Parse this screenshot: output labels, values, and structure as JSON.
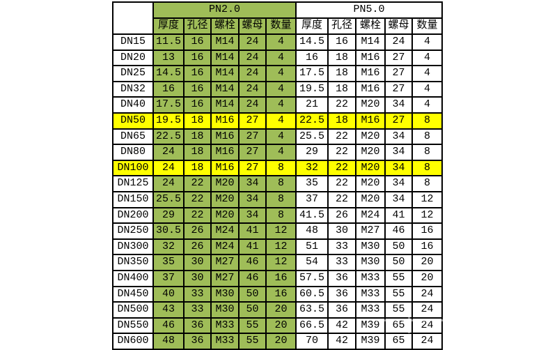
{
  "colors": {
    "green": "#9fbd58",
    "yellow": "#ffff00",
    "border": "#000000",
    "background": "#ffffff"
  },
  "table": {
    "corner_label": "",
    "groups": [
      {
        "label": "PN2.0"
      },
      {
        "label": "PN5.0"
      }
    ],
    "columns": [
      "厚度",
      "孔径",
      "螺栓",
      "螺母",
      "数量"
    ],
    "rows": [
      {
        "dn": "DN15",
        "pn2": [
          "11.5",
          "16",
          "M14",
          "24",
          "4"
        ],
        "pn5": [
          "14.5",
          "16",
          "M14",
          "24",
          "4"
        ],
        "highlight": false
      },
      {
        "dn": "DN20",
        "pn2": [
          "13",
          "16",
          "M14",
          "24",
          "4"
        ],
        "pn5": [
          "16",
          "18",
          "M16",
          "27",
          "4"
        ],
        "highlight": false
      },
      {
        "dn": "DN25",
        "pn2": [
          "14.5",
          "16",
          "M14",
          "24",
          "4"
        ],
        "pn5": [
          "17.5",
          "18",
          "M16",
          "27",
          "4"
        ],
        "highlight": false
      },
      {
        "dn": "DN32",
        "pn2": [
          "16",
          "16",
          "M14",
          "24",
          "4"
        ],
        "pn5": [
          "19.5",
          "18",
          "M16",
          "27",
          "4"
        ],
        "highlight": false
      },
      {
        "dn": "DN40",
        "pn2": [
          "17.5",
          "16",
          "M14",
          "24",
          "4"
        ],
        "pn5": [
          "21",
          "22",
          "M20",
          "34",
          "4"
        ],
        "highlight": false
      },
      {
        "dn": "DN50",
        "pn2": [
          "19.5",
          "18",
          "M16",
          "27",
          "4"
        ],
        "pn5": [
          "22.5",
          "18",
          "M16",
          "27",
          "8"
        ],
        "highlight": true
      },
      {
        "dn": "DN65",
        "pn2": [
          "22.5",
          "18",
          "M16",
          "27",
          "4"
        ],
        "pn5": [
          "25.5",
          "22",
          "M20",
          "34",
          "8"
        ],
        "highlight": false
      },
      {
        "dn": "DN80",
        "pn2": [
          "24",
          "18",
          "M16",
          "27",
          "4"
        ],
        "pn5": [
          "29",
          "22",
          "M20",
          "34",
          "8"
        ],
        "highlight": false
      },
      {
        "dn": "DN100",
        "pn2": [
          "24",
          "18",
          "M16",
          "27",
          "8"
        ],
        "pn5": [
          "32",
          "22",
          "M20",
          "34",
          "8"
        ],
        "highlight": true
      },
      {
        "dn": "DN125",
        "pn2": [
          "24",
          "22",
          "M20",
          "34",
          "8"
        ],
        "pn5": [
          "35",
          "22",
          "M20",
          "34",
          "8"
        ],
        "highlight": false
      },
      {
        "dn": "DN150",
        "pn2": [
          "25.5",
          "22",
          "M20",
          "34",
          "8"
        ],
        "pn5": [
          "37",
          "22",
          "M20",
          "34",
          "12"
        ],
        "highlight": false
      },
      {
        "dn": "DN200",
        "pn2": [
          "29",
          "22",
          "M20",
          "34",
          "8"
        ],
        "pn5": [
          "41.5",
          "26",
          "M24",
          "41",
          "12"
        ],
        "highlight": false
      },
      {
        "dn": "DN250",
        "pn2": [
          "30.5",
          "26",
          "M24",
          "41",
          "12"
        ],
        "pn5": [
          "48",
          "30",
          "M27",
          "46",
          "16"
        ],
        "highlight": false
      },
      {
        "dn": "DN300",
        "pn2": [
          "32",
          "26",
          "M24",
          "41",
          "12"
        ],
        "pn5": [
          "51",
          "33",
          "M30",
          "50",
          "16"
        ],
        "highlight": false
      },
      {
        "dn": "DN350",
        "pn2": [
          "35",
          "30",
          "M27",
          "46",
          "12"
        ],
        "pn5": [
          "54",
          "33",
          "M30",
          "50",
          "20"
        ],
        "highlight": false
      },
      {
        "dn": "DN400",
        "pn2": [
          "37",
          "30",
          "M27",
          "46",
          "16"
        ],
        "pn5": [
          "57.5",
          "36",
          "M33",
          "55",
          "20"
        ],
        "highlight": false
      },
      {
        "dn": "DN450",
        "pn2": [
          "40",
          "33",
          "M30",
          "50",
          "16"
        ],
        "pn5": [
          "60.5",
          "36",
          "M33",
          "55",
          "24"
        ],
        "highlight": false
      },
      {
        "dn": "DN500",
        "pn2": [
          "43",
          "33",
          "M30",
          "50",
          "20"
        ],
        "pn5": [
          "63.5",
          "36",
          "M33",
          "55",
          "24"
        ],
        "highlight": false
      },
      {
        "dn": "DN550",
        "pn2": [
          "46",
          "36",
          "M33",
          "55",
          "20"
        ],
        "pn5": [
          "66.5",
          "42",
          "M39",
          "65",
          "24"
        ],
        "highlight": false
      },
      {
        "dn": "DN600",
        "pn2": [
          "48",
          "36",
          "M33",
          "55",
          "20"
        ],
        "pn5": [
          "70",
          "42",
          "M39",
          "65",
          "24"
        ],
        "highlight": false
      }
    ]
  }
}
